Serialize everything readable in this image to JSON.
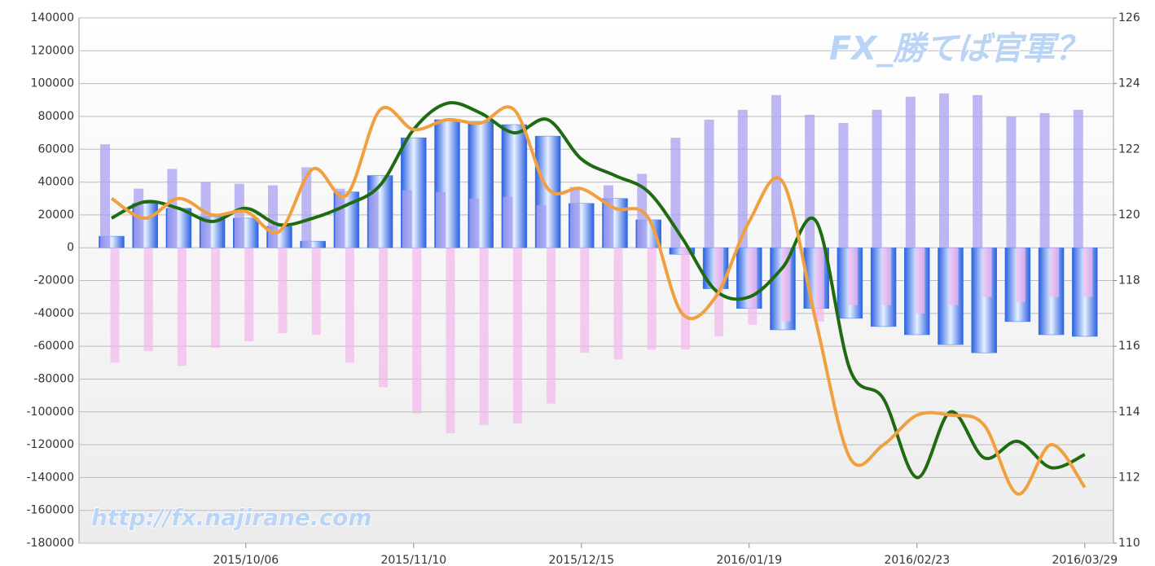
{
  "chart_data": {
    "type": "bar",
    "categories": [
      null,
      null,
      null,
      null,
      "2015/10/06",
      null,
      null,
      null,
      null,
      "2015/11/10",
      null,
      null,
      null,
      null,
      "2015/12/15",
      null,
      null,
      null,
      null,
      "2016/01/19",
      null,
      null,
      null,
      null,
      "2016/02/23",
      null,
      null,
      null,
      null,
      "2016/03/29"
    ],
    "series": [
      {
        "color": "#a8a0f0",
        "values": [
          63000,
          36000,
          48000,
          40000,
          39000,
          38000,
          49000,
          36000,
          35000,
          35000,
          34000,
          30000,
          31000,
          26000,
          37000,
          38000,
          45000,
          67000,
          78000,
          84000,
          93000,
          81000,
          76000,
          84000,
          92000,
          94000,
          93000,
          80000,
          82000,
          84000
        ]
      },
      {
        "color": "#f4b6ee",
        "values": [
          -70000,
          -63000,
          -72000,
          -61000,
          -57000,
          -52000,
          -53000,
          -70000,
          -85000,
          -101000,
          -113000,
          -108000,
          -107000,
          -95000,
          -64000,
          -68000,
          -62000,
          -62000,
          -54000,
          -47000,
          -45000,
          -45000,
          -35000,
          -35000,
          -40000,
          -35000,
          -30000,
          -33000,
          -30000,
          -30000
        ]
      },
      {
        "color": "#3d7ae8",
        "values": [
          7000,
          27000,
          24000,
          19000,
          18000,
          13000,
          4000,
          34000,
          44000,
          67000,
          78000,
          77000,
          75000,
          68000,
          27000,
          30000,
          17000,
          -4000,
          -25000,
          -37000,
          -50000,
          -37000,
          -43000,
          -48000,
          -53000,
          -59000,
          -64000,
          -45000,
          -53000,
          -54000
        ]
      },
      {
        "type": "line",
        "axis": "y2",
        "color": "#1f6b12",
        "values": [
          119.9,
          120.4,
          120.2,
          119.8,
          120.2,
          119.7,
          119.9,
          120.3,
          120.9,
          122.6,
          123.4,
          123.1,
          122.5,
          122.9,
          121.7,
          121.2,
          120.7,
          119.3,
          117.7,
          117.5,
          118.4,
          119.8,
          115.3,
          114.4,
          112.0,
          114.0,
          112.6,
          113.1,
          112.3,
          112.7
        ]
      },
      {
        "type": "line",
        "axis": "y2",
        "color": "#f0a040",
        "values": [
          120.5,
          119.9,
          120.5,
          120.0,
          120.1,
          119.5,
          121.4,
          120.6,
          123.2,
          122.6,
          122.9,
          122.8,
          123.2,
          120.8,
          120.8,
          120.2,
          119.9,
          117.0,
          117.5,
          119.8,
          121.0,
          116.7,
          112.6,
          113.0,
          113.9,
          113.9,
          113.6,
          111.5,
          113.0,
          111.7
        ]
      }
    ],
    "ylim": [
      -180000,
      140000
    ],
    "yticks": [
      -180000,
      -160000,
      -140000,
      -120000,
      -100000,
      -80000,
      -60000,
      -40000,
      -20000,
      0,
      20000,
      40000,
      60000,
      80000,
      100000,
      120000,
      140000
    ],
    "y2lim": [
      110,
      126
    ],
    "y2ticks": [
      110,
      112,
      114,
      116,
      118,
      120,
      122,
      124,
      126
    ],
    "grid": true,
    "watermarks": [
      "FX_勝てば官軍？",
      "http://fx.najirane.com"
    ]
  }
}
